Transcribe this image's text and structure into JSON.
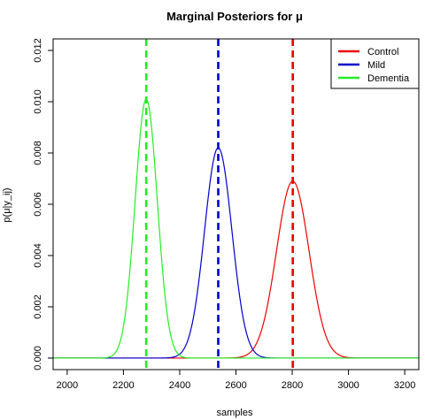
{
  "chart_data": {
    "type": "line",
    "title": "Marginal Posteriors for μ",
    "xlabel": "samples",
    "ylabel": "p(μ|y_ij)",
    "xlim": [
      1950,
      3250
    ],
    "ylim": [
      -0.00045,
      0.01245
    ],
    "x_ticks": [
      2000,
      2200,
      2400,
      2600,
      2800,
      3000,
      3200
    ],
    "x_tick_labels": [
      "2000",
      "2200",
      "2400",
      "2600",
      "2800",
      "3000",
      "3200"
    ],
    "y_ticks": [
      0.0,
      0.002,
      0.004,
      0.006,
      0.008,
      0.01,
      0.012
    ],
    "y_tick_labels": [
      "0.000",
      "0.002",
      "0.004",
      "0.006",
      "0.008",
      "0.010",
      "0.012"
    ],
    "legend_position": "top-right",
    "series": [
      {
        "name": "Control",
        "color": "#ee0000",
        "mean": 2802,
        "peak": 0.0069,
        "vline": 2802
      },
      {
        "name": "Mild",
        "color": "#0000cc",
        "mean": 2537,
        "peak": 0.0082,
        "vline": 2537
      },
      {
        "name": "Dementia",
        "color": "#22ee22",
        "mean": 2281,
        "peak": 0.0101,
        "vline": 2281
      }
    ]
  }
}
